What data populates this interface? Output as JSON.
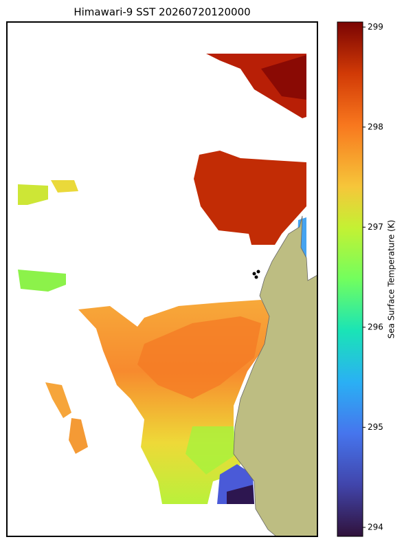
{
  "chart_data": {
    "type": "map",
    "title": "Himawari-9 SST 20260720120000",
    "colorbar_label": "Sea Surface Temperature (K)",
    "clim": [
      293.91,
      299.05
    ],
    "cticks": [
      294,
      295,
      296,
      297,
      298,
      299
    ]
  }
}
